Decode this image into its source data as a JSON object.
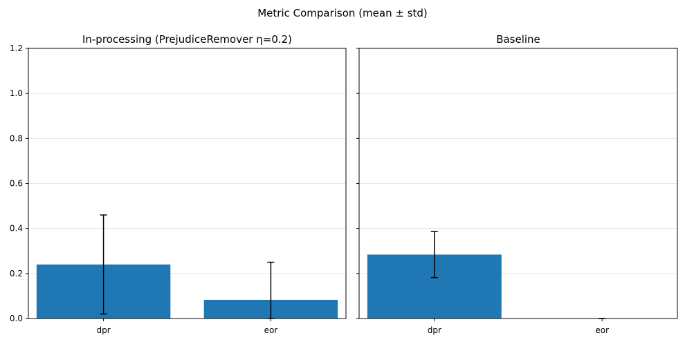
{
  "figure": {
    "suptitle": "Metric Comparison (mean ± std)"
  },
  "colors": {
    "bar": "#1f77b4",
    "errorbar": "#000000",
    "grid": "#e6e6e6",
    "axes": "#000000"
  },
  "chart_data": [
    {
      "type": "bar",
      "title": "In-processing (PrejudiceRemover η=0.2)",
      "categories": [
        "dpr",
        "eor"
      ],
      "values": [
        0.24,
        0.083
      ],
      "errors": [
        0.22,
        0.167
      ],
      "xlabel": "",
      "ylabel": "",
      "ylim": [
        0,
        1.2
      ],
      "yticks": [
        0.0,
        0.2,
        0.4,
        0.6,
        0.8,
        1.0,
        1.2
      ],
      "ytick_labels": [
        "0.0",
        "0.2",
        "0.4",
        "0.6",
        "0.8",
        "1.0",
        "1.2"
      ],
      "grid": "y"
    },
    {
      "type": "bar",
      "title": "Baseline",
      "categories": [
        "dpr",
        "eor"
      ],
      "values": [
        0.284,
        0.0
      ],
      "errors": [
        0.102,
        0.0
      ],
      "xlabel": "",
      "ylabel": "",
      "ylim": [
        0,
        1.2
      ],
      "yticks": [
        0.0,
        0.2,
        0.4,
        0.6,
        0.8,
        1.0,
        1.2
      ],
      "ytick_labels": [
        "",
        "",
        "",
        "",
        "",
        "",
        ""
      ],
      "grid": "y"
    }
  ]
}
